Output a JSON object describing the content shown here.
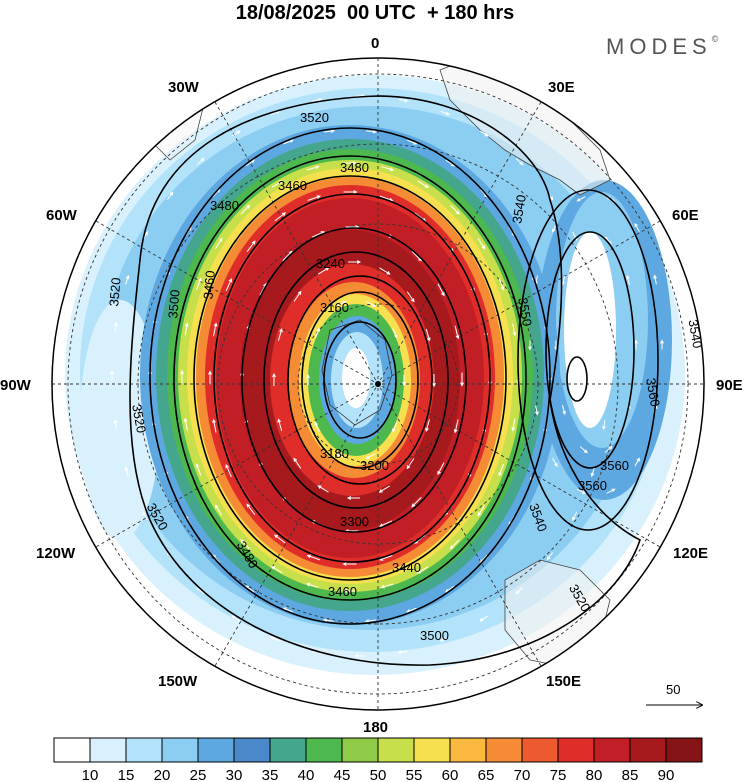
{
  "title": "18/08/2025  00 UTC  + 180 hrs",
  "brand": "MODES",
  "brand_mark": "©",
  "longitude_labels": {
    "0": "0",
    "30E": "30E",
    "60E": "60E",
    "90E": "90E",
    "120E": "120E",
    "150E": "150E",
    "180": "180",
    "150W": "150W",
    "120W": "120W",
    "90W": "90W",
    "60W": "60W",
    "30W": "30W"
  },
  "contour_labels": [
    "3520",
    "3480",
    "3460",
    "3480",
    "3540",
    "3520",
    "3500",
    "3460",
    "3240",
    "3160",
    "3520",
    "3540",
    "3560",
    "3520",
    "3550",
    "3560",
    "3200",
    "3180",
    "3300",
    "3440",
    "3460",
    "3480",
    "3500",
    "3520",
    "3540",
    "3560"
  ],
  "wind_reference": "50",
  "colorbar": {
    "labels": [
      "10",
      "15",
      "20",
      "25",
      "30",
      "35",
      "40",
      "45",
      "50",
      "55",
      "60",
      "65",
      "70",
      "75",
      "80",
      "85",
      "90"
    ],
    "colors": [
      "#ffffff",
      "#d9f1fd",
      "#b3e3fa",
      "#8ccdf2",
      "#5ea8e1",
      "#4a88c9",
      "#44a68d",
      "#4cb84e",
      "#8fca48",
      "#c8df4c",
      "#f7e04f",
      "#f9b93f",
      "#f58b34",
      "#ed5a30",
      "#df2d2a",
      "#c11f25",
      "#a6191c",
      "#861417"
    ]
  },
  "colors": {
    "land": "#f0f0f0",
    "contour": "#000000",
    "grid": "#333333"
  }
}
